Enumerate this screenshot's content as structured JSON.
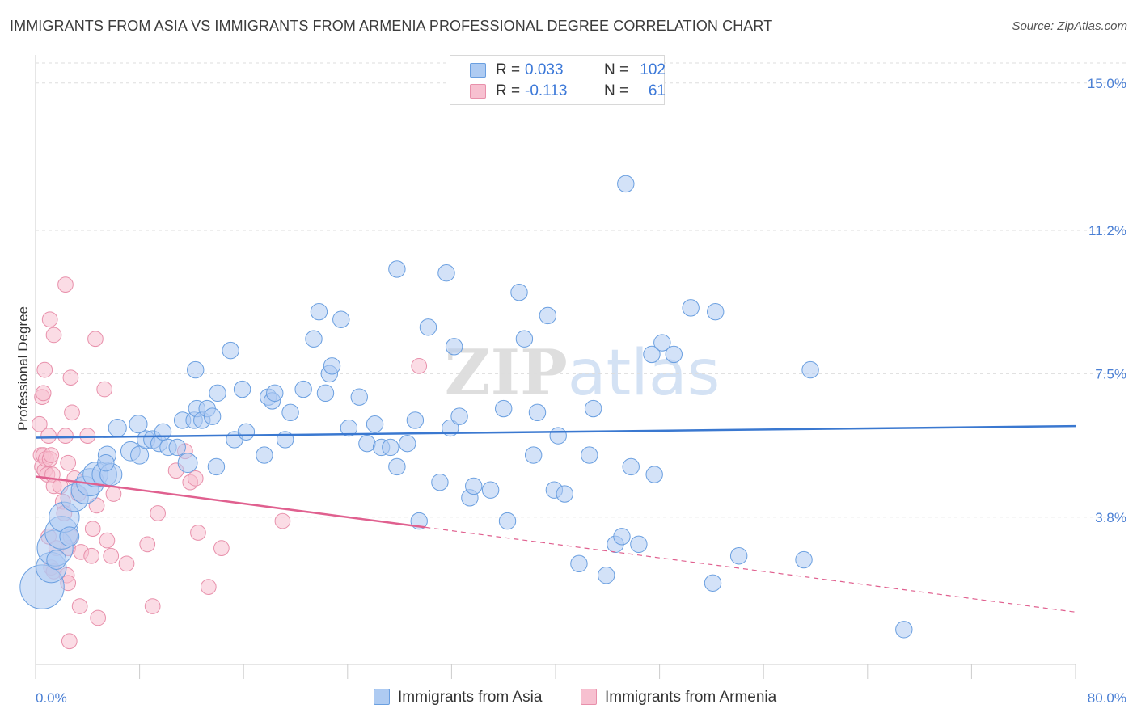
{
  "header": {
    "title": "IMMIGRANTS FROM ASIA VS IMMIGRANTS FROM ARMENIA PROFESSIONAL DEGREE CORRELATION CHART",
    "source": "Source: ZipAtlas.com"
  },
  "watermark": "ZIPatlas",
  "legend": {
    "rows": [
      {
        "r_label": "R =",
        "r_value": "0.033",
        "n_label": "N =",
        "n_value": "102"
      },
      {
        "r_label": "R =",
        "r_value": "-0.113",
        "n_label": "N =",
        "n_value": "61"
      }
    ]
  },
  "colors": {
    "asia_fill": "#aecbf2",
    "asia_stroke": "#6a9fe0",
    "asia_line": "#3a78d0",
    "armenia_fill": "#f7c0d0",
    "armenia_stroke": "#e890ab",
    "armenia_line": "#e0608f",
    "tick_text": "#4a7fd4",
    "grid": "#dddddd"
  },
  "chart_data": {
    "type": "scatter",
    "title": "IMMIGRANTS FROM ASIA VS IMMIGRANTS FROM ARMENIA PROFESSIONAL DEGREE CORRELATION CHART",
    "xlabel": "",
    "ylabel": "Professional Degree",
    "xlim": [
      0,
      80
    ],
    "ylim": [
      0,
      15.6
    ],
    "x_tick_labels": [
      "0.0%",
      "80.0%"
    ],
    "y_ticks": [
      {
        "value": 3.8,
        "label": "3.8%"
      },
      {
        "value": 7.5,
        "label": "7.5%"
      },
      {
        "value": 11.2,
        "label": "11.2%"
      },
      {
        "value": 15.0,
        "label": "15.0%"
      }
    ],
    "grid": true,
    "legend_position": "top-center",
    "series": [
      {
        "name": "Immigrants from Asia",
        "trend": {
          "x": [
            0,
            80
          ],
          "y": [
            5.85,
            6.15
          ],
          "style": "solid"
        },
        "points": [
          {
            "x": 0.5,
            "y": 2.0,
            "s": 3.2
          },
          {
            "x": 1.2,
            "y": 2.5,
            "s": 2.2
          },
          {
            "x": 1.5,
            "y": 3.0,
            "s": 2.6
          },
          {
            "x": 2.0,
            "y": 3.4,
            "s": 2.4
          },
          {
            "x": 2.2,
            "y": 3.8,
            "s": 2.2
          },
          {
            "x": 3.0,
            "y": 4.3,
            "s": 2.0
          },
          {
            "x": 3.8,
            "y": 4.5,
            "s": 2.0
          },
          {
            "x": 4.2,
            "y": 4.7,
            "s": 2.0
          },
          {
            "x": 4.6,
            "y": 4.9,
            "s": 1.8
          },
          {
            "x": 5.3,
            "y": 4.9,
            "s": 1.8
          },
          {
            "x": 5.8,
            "y": 4.9,
            "s": 1.6
          },
          {
            "x": 5.5,
            "y": 5.4,
            "s": 1.3
          },
          {
            "x": 5.4,
            "y": 5.2,
            "s": 1.2
          },
          {
            "x": 6.3,
            "y": 6.1,
            "s": 1.3
          },
          {
            "x": 7.3,
            "y": 5.5,
            "s": 1.4
          },
          {
            "x": 7.9,
            "y": 6.2,
            "s": 1.3
          },
          {
            "x": 8.0,
            "y": 5.4,
            "s": 1.3
          },
          {
            "x": 8.5,
            "y": 5.8,
            "s": 1.3
          },
          {
            "x": 9.0,
            "y": 5.8,
            "s": 1.3
          },
          {
            "x": 9.5,
            "y": 5.7,
            "s": 1.2
          },
          {
            "x": 9.8,
            "y": 6.0,
            "s": 1.2
          },
          {
            "x": 10.2,
            "y": 5.6,
            "s": 1.2
          },
          {
            "x": 10.9,
            "y": 5.6,
            "s": 1.2
          },
          {
            "x": 11.3,
            "y": 6.3,
            "s": 1.2
          },
          {
            "x": 11.7,
            "y": 5.2,
            "s": 1.4
          },
          {
            "x": 12.2,
            "y": 6.3,
            "s": 1.2
          },
          {
            "x": 12.3,
            "y": 7.6,
            "s": 1.2
          },
          {
            "x": 12.4,
            "y": 6.6,
            "s": 1.2
          },
          {
            "x": 12.8,
            "y": 6.3,
            "s": 1.2
          },
          {
            "x": 13.2,
            "y": 6.6,
            "s": 1.2
          },
          {
            "x": 13.6,
            "y": 6.4,
            "s": 1.2
          },
          {
            "x": 13.9,
            "y": 5.1,
            "s": 1.2
          },
          {
            "x": 14.0,
            "y": 7.0,
            "s": 1.2
          },
          {
            "x": 15.0,
            "y": 8.1,
            "s": 1.2
          },
          {
            "x": 15.3,
            "y": 5.8,
            "s": 1.2
          },
          {
            "x": 15.9,
            "y": 7.1,
            "s": 1.2
          },
          {
            "x": 16.2,
            "y": 6.0,
            "s": 1.2
          },
          {
            "x": 17.6,
            "y": 5.4,
            "s": 1.2
          },
          {
            "x": 17.9,
            "y": 6.9,
            "s": 1.2
          },
          {
            "x": 18.2,
            "y": 6.8,
            "s": 1.2
          },
          {
            "x": 18.4,
            "y": 7.0,
            "s": 1.2
          },
          {
            "x": 19.2,
            "y": 5.8,
            "s": 1.2
          },
          {
            "x": 19.6,
            "y": 6.5,
            "s": 1.2
          },
          {
            "x": 20.6,
            "y": 7.1,
            "s": 1.2
          },
          {
            "x": 21.4,
            "y": 8.4,
            "s": 1.2
          },
          {
            "x": 21.8,
            "y": 9.1,
            "s": 1.2
          },
          {
            "x": 22.3,
            "y": 7.0,
            "s": 1.2
          },
          {
            "x": 22.6,
            "y": 7.5,
            "s": 1.2
          },
          {
            "x": 22.8,
            "y": 7.7,
            "s": 1.2
          },
          {
            "x": 23.5,
            "y": 8.9,
            "s": 1.2
          },
          {
            "x": 24.1,
            "y": 6.1,
            "s": 1.2
          },
          {
            "x": 24.9,
            "y": 6.9,
            "s": 1.2
          },
          {
            "x": 25.5,
            "y": 5.7,
            "s": 1.2
          },
          {
            "x": 26.1,
            "y": 6.2,
            "s": 1.2
          },
          {
            "x": 26.6,
            "y": 5.6,
            "s": 1.2
          },
          {
            "x": 27.3,
            "y": 5.6,
            "s": 1.2
          },
          {
            "x": 27.8,
            "y": 5.1,
            "s": 1.2
          },
          {
            "x": 27.8,
            "y": 10.2,
            "s": 1.2
          },
          {
            "x": 28.6,
            "y": 5.7,
            "s": 1.2
          },
          {
            "x": 29.2,
            "y": 6.3,
            "s": 1.2
          },
          {
            "x": 29.5,
            "y": 3.7,
            "s": 1.2
          },
          {
            "x": 30.2,
            "y": 8.7,
            "s": 1.2
          },
          {
            "x": 31.1,
            "y": 4.7,
            "s": 1.2
          },
          {
            "x": 31.6,
            "y": 10.1,
            "s": 1.2
          },
          {
            "x": 31.9,
            "y": 6.1,
            "s": 1.2
          },
          {
            "x": 32.2,
            "y": 8.2,
            "s": 1.2
          },
          {
            "x": 32.6,
            "y": 6.4,
            "s": 1.2
          },
          {
            "x": 33.4,
            "y": 4.3,
            "s": 1.2
          },
          {
            "x": 33.7,
            "y": 4.6,
            "s": 1.2
          },
          {
            "x": 35.0,
            "y": 4.5,
            "s": 1.2
          },
          {
            "x": 36.0,
            "y": 6.6,
            "s": 1.2
          },
          {
            "x": 36.3,
            "y": 3.7,
            "s": 1.2
          },
          {
            "x": 37.2,
            "y": 9.6,
            "s": 1.2
          },
          {
            "x": 37.6,
            "y": 8.4,
            "s": 1.2
          },
          {
            "x": 38.3,
            "y": 5.4,
            "s": 1.2
          },
          {
            "x": 38.6,
            "y": 6.5,
            "s": 1.2
          },
          {
            "x": 39.4,
            "y": 9.0,
            "s": 1.2
          },
          {
            "x": 39.9,
            "y": 4.5,
            "s": 1.2
          },
          {
            "x": 40.2,
            "y": 5.9,
            "s": 1.2
          },
          {
            "x": 40.7,
            "y": 4.4,
            "s": 1.2
          },
          {
            "x": 41.8,
            "y": 2.6,
            "s": 1.2
          },
          {
            "x": 42.6,
            "y": 5.4,
            "s": 1.2
          },
          {
            "x": 42.9,
            "y": 6.6,
            "s": 1.2
          },
          {
            "x": 43.9,
            "y": 2.3,
            "s": 1.2
          },
          {
            "x": 44.6,
            "y": 3.1,
            "s": 1.2
          },
          {
            "x": 45.1,
            "y": 3.3,
            "s": 1.2
          },
          {
            "x": 45.4,
            "y": 12.4,
            "s": 1.2
          },
          {
            "x": 45.8,
            "y": 5.1,
            "s": 1.2
          },
          {
            "x": 46.4,
            "y": 3.1,
            "s": 1.2
          },
          {
            "x": 47.4,
            "y": 8.0,
            "s": 1.2
          },
          {
            "x": 47.6,
            "y": 4.9,
            "s": 1.2
          },
          {
            "x": 48.2,
            "y": 8.3,
            "s": 1.2
          },
          {
            "x": 49.1,
            "y": 8.0,
            "s": 1.2
          },
          {
            "x": 50.4,
            "y": 9.2,
            "s": 1.2
          },
          {
            "x": 52.1,
            "y": 2.1,
            "s": 1.2
          },
          {
            "x": 52.3,
            "y": 9.1,
            "s": 1.2
          },
          {
            "x": 54.1,
            "y": 2.8,
            "s": 1.2
          },
          {
            "x": 59.1,
            "y": 2.7,
            "s": 1.2
          },
          {
            "x": 59.6,
            "y": 7.6,
            "s": 1.2
          },
          {
            "x": 66.8,
            "y": 0.9,
            "s": 1.2
          },
          {
            "x": 1.6,
            "y": 2.7,
            "s": 1.4
          },
          {
            "x": 2.6,
            "y": 3.3,
            "s": 1.4
          }
        ]
      },
      {
        "name": "Immigrants from Armenia",
        "trend": {
          "x": [
            0,
            80
          ],
          "y": [
            4.85,
            1.35
          ],
          "solid_until_x": 30,
          "style": "solid-then-dashed"
        },
        "points": [
          {
            "x": 0.3,
            "y": 6.2,
            "s": 1.1
          },
          {
            "x": 0.4,
            "y": 5.4,
            "s": 1.1
          },
          {
            "x": 0.5,
            "y": 5.1,
            "s": 1.1
          },
          {
            "x": 0.6,
            "y": 5.4,
            "s": 1.1
          },
          {
            "x": 0.7,
            "y": 5.0,
            "s": 1.1
          },
          {
            "x": 0.8,
            "y": 5.3,
            "s": 1.1
          },
          {
            "x": 0.9,
            "y": 4.9,
            "s": 1.1
          },
          {
            "x": 0.5,
            "y": 6.9,
            "s": 1.1
          },
          {
            "x": 0.6,
            "y": 7.0,
            "s": 1.1
          },
          {
            "x": 0.7,
            "y": 7.6,
            "s": 1.1
          },
          {
            "x": 1.0,
            "y": 5.9,
            "s": 1.1
          },
          {
            "x": 1.1,
            "y": 5.3,
            "s": 1.1
          },
          {
            "x": 1.2,
            "y": 5.4,
            "s": 1.1
          },
          {
            "x": 1.3,
            "y": 4.9,
            "s": 1.1
          },
          {
            "x": 1.4,
            "y": 4.6,
            "s": 1.1
          },
          {
            "x": 1.0,
            "y": 3.3,
            "s": 1.1
          },
          {
            "x": 1.2,
            "y": 2.5,
            "s": 1.1
          },
          {
            "x": 1.4,
            "y": 2.4,
            "s": 1.1
          },
          {
            "x": 1.6,
            "y": 3.0,
            "s": 1.1
          },
          {
            "x": 1.1,
            "y": 8.9,
            "s": 1.1
          },
          {
            "x": 1.4,
            "y": 8.5,
            "s": 1.1
          },
          {
            "x": 1.9,
            "y": 4.6,
            "s": 1.1
          },
          {
            "x": 2.1,
            "y": 4.2,
            "s": 1.1
          },
          {
            "x": 2.2,
            "y": 3.9,
            "s": 1.1
          },
          {
            "x": 2.3,
            "y": 5.9,
            "s": 1.1
          },
          {
            "x": 2.3,
            "y": 9.8,
            "s": 1.1
          },
          {
            "x": 2.5,
            "y": 3.0,
            "s": 1.1
          },
          {
            "x": 2.7,
            "y": 3.3,
            "s": 1.1
          },
          {
            "x": 2.4,
            "y": 2.3,
            "s": 1.1
          },
          {
            "x": 2.5,
            "y": 2.1,
            "s": 1.1
          },
          {
            "x": 2.5,
            "y": 5.2,
            "s": 1.1
          },
          {
            "x": 2.7,
            "y": 7.4,
            "s": 1.1
          },
          {
            "x": 2.8,
            "y": 6.5,
            "s": 1.1
          },
          {
            "x": 3.0,
            "y": 4.8,
            "s": 1.1
          },
          {
            "x": 3.3,
            "y": 4.4,
            "s": 1.1
          },
          {
            "x": 3.4,
            "y": 1.5,
            "s": 1.1
          },
          {
            "x": 3.5,
            "y": 2.9,
            "s": 1.1
          },
          {
            "x": 4.0,
            "y": 5.9,
            "s": 1.1
          },
          {
            "x": 4.3,
            "y": 2.8,
            "s": 1.1
          },
          {
            "x": 4.4,
            "y": 3.5,
            "s": 1.1
          },
          {
            "x": 4.6,
            "y": 8.4,
            "s": 1.1
          },
          {
            "x": 4.7,
            "y": 4.1,
            "s": 1.1
          },
          {
            "x": 4.8,
            "y": 1.2,
            "s": 1.1
          },
          {
            "x": 5.3,
            "y": 7.1,
            "s": 1.1
          },
          {
            "x": 5.5,
            "y": 3.2,
            "s": 1.1
          },
          {
            "x": 5.8,
            "y": 2.8,
            "s": 1.1
          },
          {
            "x": 6.0,
            "y": 4.4,
            "s": 1.1
          },
          {
            "x": 7.0,
            "y": 2.6,
            "s": 1.1
          },
          {
            "x": 8.6,
            "y": 3.1,
            "s": 1.1
          },
          {
            "x": 9.0,
            "y": 1.5,
            "s": 1.1
          },
          {
            "x": 9.4,
            "y": 3.9,
            "s": 1.1
          },
          {
            "x": 10.8,
            "y": 5.0,
            "s": 1.1
          },
          {
            "x": 11.5,
            "y": 5.5,
            "s": 1.1
          },
          {
            "x": 11.9,
            "y": 4.7,
            "s": 1.1
          },
          {
            "x": 12.3,
            "y": 4.8,
            "s": 1.1
          },
          {
            "x": 12.5,
            "y": 3.4,
            "s": 1.1
          },
          {
            "x": 13.3,
            "y": 2.0,
            "s": 1.1
          },
          {
            "x": 14.3,
            "y": 3.0,
            "s": 1.1
          },
          {
            "x": 19.0,
            "y": 3.7,
            "s": 1.1
          },
          {
            "x": 29.5,
            "y": 7.7,
            "s": 1.1
          },
          {
            "x": 2.6,
            "y": 0.6,
            "s": 1.1
          }
        ]
      }
    ]
  },
  "bottom_legend": {
    "items": [
      {
        "label": "Immigrants from Asia"
      },
      {
        "label": "Immigrants from Armenia"
      }
    ]
  }
}
